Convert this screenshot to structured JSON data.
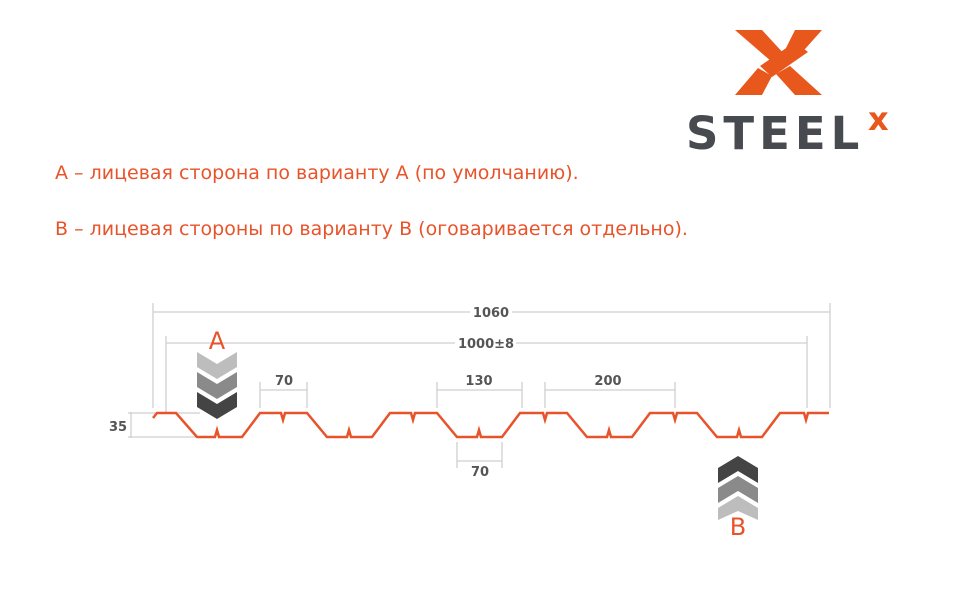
{
  "logo": {
    "text": "STEEL",
    "superscript": "x",
    "colors": {
      "orange": "#e8581c",
      "gray": "#474b4f"
    }
  },
  "notes": [
    "А – лицевая сторона по варианту А (по умолчанию).",
    "В – лицевая стороны по варианту В (оговаривается отдельно)."
  ],
  "diagram": {
    "side_a_label": "A",
    "side_b_label": "B",
    "dimensions": {
      "total_width": "1060",
      "working_width": "1000±8",
      "top_flat": "70",
      "rib_top": "130",
      "pitch": "200",
      "bottom_flat": "70",
      "height": "35"
    },
    "colors": {
      "profile": "#e8532a",
      "dim_lines": "#cfcfcf"
    }
  }
}
